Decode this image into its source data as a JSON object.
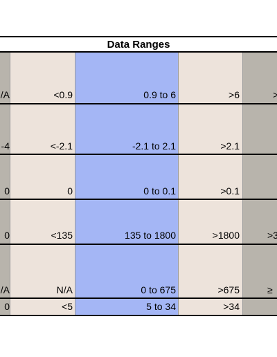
{
  "table": {
    "title": "Data Ranges",
    "rows": [
      {
        "a": "/A",
        "b": "<0.9",
        "c": "0.9 to 6",
        "d": ">6",
        "e": ">"
      },
      {
        "a": "-4",
        "b": "<-2.1",
        "c": "-2.1 to 2.1",
        "d": ">2.1",
        "e": ""
      },
      {
        "a": "0",
        "b": "0",
        "c": "0 to 0.1",
        "d": ">0.1",
        "e": ""
      },
      {
        "a": "0",
        "b": "<135",
        "c": "135 to 1800",
        "d": ">1800",
        "e": ">3"
      },
      {
        "a": "/A",
        "b": "N/A",
        "c": "0 to 675",
        "d": ">675",
        "e": "≥"
      },
      {
        "a": "0",
        "b": "<5",
        "c": "5  to 34",
        "d": ">34",
        "e": ""
      }
    ]
  },
  "colors": {
    "gray_column": "#b8b4ac",
    "beige_column": "#ede3db",
    "blue_column": "#a4b6f5"
  }
}
